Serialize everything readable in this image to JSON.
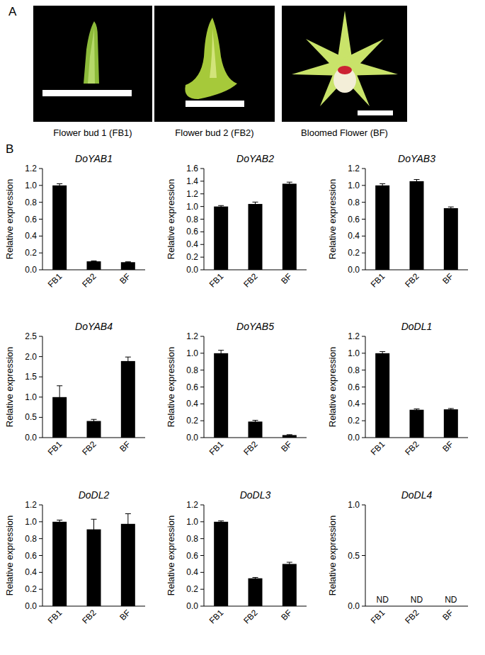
{
  "figure": {
    "panel_labels": [
      "A",
      "B"
    ],
    "photos": [
      {
        "caption": "Flower bud 1 (FB1)"
      },
      {
        "caption": "Flower bud 2 (FB2)"
      },
      {
        "caption": "Bloomed Flower (BF)"
      }
    ]
  },
  "chart_data": [
    {
      "type": "bar",
      "title": "DoYAB1",
      "y_label": "Relative expression",
      "categories": [
        "FB1",
        "FB2",
        "BF"
      ],
      "values": [
        1.0,
        0.1,
        0.09
      ],
      "errors": [
        0.02,
        0.006,
        0.005
      ],
      "color": "#000000",
      "ylim": [
        0,
        1.2
      ],
      "yticks": [
        {
          "value": 0,
          "label": "0.0"
        },
        0.2,
        0.4,
        0.6,
        0.8,
        {
          "value": 1,
          "label": "1.0"
        },
        1.2
      ],
      "grid": false
    },
    {
      "type": "bar",
      "title": "DoYAB2",
      "y_label": "Relative expression",
      "categories": [
        "FB1",
        "FB2",
        "BF"
      ],
      "values": [
        1.0,
        1.04,
        1.36
      ],
      "errors": [
        0.015,
        0.03,
        0.025
      ],
      "color": "#000000",
      "ylim": [
        0,
        1.6
      ],
      "yticks": [
        {
          "value": 0,
          "label": "0.0"
        },
        0.2,
        0.4,
        0.6,
        0.8,
        {
          "value": 1,
          "label": "1.0"
        },
        1.2,
        1.4,
        1.6
      ],
      "grid": false
    },
    {
      "type": "bar",
      "title": "DoYAB3",
      "y_label": "Relative expression",
      "categories": [
        "FB1",
        "FB2",
        "BF"
      ],
      "values": [
        1.0,
        1.05,
        0.73
      ],
      "errors": [
        0.02,
        0.02,
        0.015
      ],
      "color": "#000000",
      "ylim": [
        0,
        1.2
      ],
      "yticks": [
        {
          "value": 0,
          "label": "0.0"
        },
        0.2,
        0.4,
        0.6,
        0.8,
        {
          "value": 1,
          "label": "1.0"
        },
        1.2
      ],
      "grid": false
    },
    {
      "type": "bar",
      "title": "DoYAB4",
      "y_label": "Relative expression",
      "categories": [
        "FB1",
        "FB2",
        "BF"
      ],
      "values": [
        1.0,
        0.41,
        1.89
      ],
      "errors": [
        0.28,
        0.04,
        0.1
      ],
      "color": "#000000",
      "ylim": [
        0,
        2.5
      ],
      "yticks": [
        {
          "value": 0,
          "label": "0.0"
        },
        0.5,
        {
          "value": 1,
          "label": "1.0"
        },
        1.5,
        {
          "value": 2,
          "label": "2.0"
        },
        2.5
      ],
      "grid": false
    },
    {
      "type": "bar",
      "title": "DoYAB5",
      "y_label": "Relative expression",
      "categories": [
        "FB1",
        "FB2",
        "BF"
      ],
      "values": [
        1.0,
        0.19,
        0.03
      ],
      "errors": [
        0.035,
        0.015,
        0.005
      ],
      "color": "#000000",
      "ylim": [
        0,
        1.2
      ],
      "yticks": [
        {
          "value": 0,
          "label": "0.0"
        },
        0.2,
        0.4,
        0.6,
        0.8,
        {
          "value": 1,
          "label": "1.0"
        },
        1.2
      ],
      "grid": false
    },
    {
      "type": "bar",
      "title": "DoDL1",
      "y_label": "Relative expression",
      "categories": [
        "FB1",
        "FB2",
        "BF"
      ],
      "values": [
        1.0,
        0.33,
        0.335
      ],
      "errors": [
        0.02,
        0.01,
        0.01
      ],
      "color": "#000000",
      "ylim": [
        0,
        1.2
      ],
      "yticks": [
        {
          "value": 0,
          "label": "0.0"
        },
        0.2,
        0.4,
        0.6,
        0.8,
        {
          "value": 1,
          "label": "1.0"
        },
        1.2
      ],
      "grid": false
    },
    {
      "type": "bar",
      "title": "DoDL2",
      "y_label": "Relative expression",
      "categories": [
        "FB1",
        "FB2",
        "BF"
      ],
      "values": [
        1.0,
        0.91,
        0.975
      ],
      "errors": [
        0.02,
        0.12,
        0.12
      ],
      "color": "#000000",
      "ylim": [
        0,
        1.2
      ],
      "yticks": [
        {
          "value": 0,
          "label": "0.0"
        },
        0.2,
        0.4,
        0.6,
        0.8,
        {
          "value": 1,
          "label": "1.0"
        },
        1.2
      ],
      "grid": false
    },
    {
      "type": "bar",
      "title": "DoDL3",
      "y_label": "Relative expression",
      "categories": [
        "FB1",
        "FB2",
        "BF"
      ],
      "values": [
        1.0,
        0.33,
        0.5
      ],
      "errors": [
        0.01,
        0.01,
        0.02
      ],
      "color": "#000000",
      "ylim": [
        0,
        1.2
      ],
      "yticks": [
        {
          "value": 0,
          "label": "0.0"
        },
        0.2,
        0.4,
        0.6,
        0.8,
        {
          "value": 1,
          "label": "1.0"
        },
        1.2
      ],
      "grid": false
    },
    {
      "type": "bar",
      "title": "DoDL4",
      "y_label": "Relative expression",
      "categories": [
        "FB1",
        "FB2",
        "BF"
      ],
      "values": [
        null,
        null,
        null
      ],
      "value_labels": [
        "ND",
        "ND",
        "ND"
      ],
      "data_labels": true,
      "color": "#000000",
      "ylim": [
        0,
        1
      ],
      "yticks": [
        {
          "value": 0,
          "label": "0.0"
        },
        0.5,
        {
          "value": 1,
          "label": "1.0"
        }
      ],
      "grid": false
    }
  ]
}
